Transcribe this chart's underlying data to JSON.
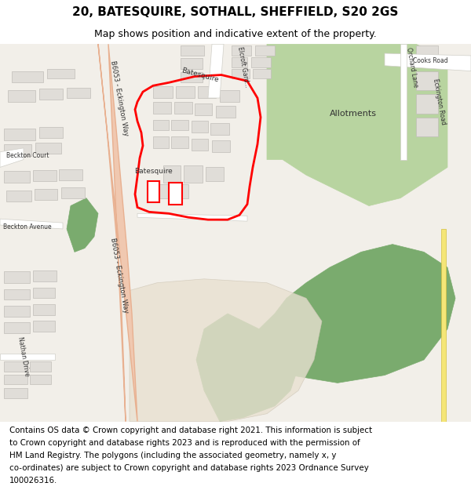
{
  "title": "20, BATESQUIRE, SOTHALL, SHEFFIELD, S20 2GS",
  "subtitle": "Map shows position and indicative extent of the property.",
  "footer_lines": [
    "Contains OS data © Crown copyright and database right 2021. This information is subject",
    "to Crown copyright and database rights 2023 and is reproduced with the permission of",
    "HM Land Registry. The polygons (including the associated geometry, namely x, y",
    "co-ordinates) are subject to Crown copyright and database rights 2023 Ordnance Survey",
    "100026316."
  ],
  "map_bg": "#f2efe9",
  "road_color": "#ffffff",
  "road_outline": "#d0cfc8",
  "major_road_fill": "#f0c8b0",
  "major_road_outline": "#e8b090",
  "green_color": "#b8d4a0",
  "dark_green_color": "#7aab6e",
  "building_color": "#e0ddd8",
  "building_outline": "#c0bdb8",
  "property_outline": "#ff0000",
  "yellow_road": "#f5e678",
  "footer_fontsize": 7.4,
  "title_fontsize": 11,
  "subtitle_fontsize": 9
}
